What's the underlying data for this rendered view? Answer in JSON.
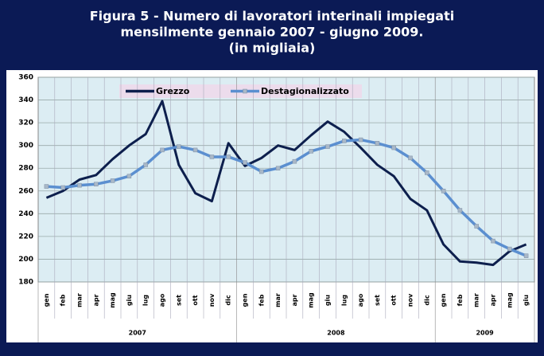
{
  "chart_data": {
    "type": "line",
    "title": [
      "Figura 5 - Numero di lavoratori interinali impiegati",
      "mensilmente gennaio 2007 - giugno 2009.",
      "(in migliaia)"
    ],
    "categories": [
      "gen",
      "feb",
      "mar",
      "apr",
      "mag",
      "giu",
      "lug",
      "ago",
      "set",
      "ott",
      "nov",
      "dic",
      "gen",
      "feb",
      "mar",
      "apr",
      "mag",
      "giu",
      "lug",
      "ago",
      "set",
      "ott",
      "nov",
      "dic",
      "gen",
      "feb",
      "mar",
      "apr",
      "mag",
      "giu"
    ],
    "category_groups": [
      "2007",
      "2008",
      "2009"
    ],
    "series": [
      {
        "name": "Grezzo",
        "color": "#0d1f4d",
        "values": [
          254,
          260,
          270,
          274,
          288,
          300,
          310,
          339,
          283,
          258,
          251,
          302,
          282,
          289,
          300,
          296,
          309,
          321,
          312,
          298,
          283,
          273,
          253,
          243,
          213,
          198,
          197,
          195,
          207,
          213
        ]
      },
      {
        "name": "Destagionalizzato",
        "color": "#5b8fd0",
        "marker_color": "#a9b8c8",
        "values": [
          264,
          263,
          265,
          266,
          269,
          273,
          283,
          296,
          299,
          296,
          290,
          290,
          285,
          277,
          280,
          286,
          295,
          299,
          304,
          305,
          302,
          298,
          289,
          276,
          260,
          243,
          229,
          216,
          209,
          203
        ]
      }
    ],
    "ylim": [
      180,
      360
    ],
    "yticks": [
      180,
      200,
      220,
      240,
      260,
      280,
      300,
      320,
      340,
      360
    ],
    "grid": true
  }
}
